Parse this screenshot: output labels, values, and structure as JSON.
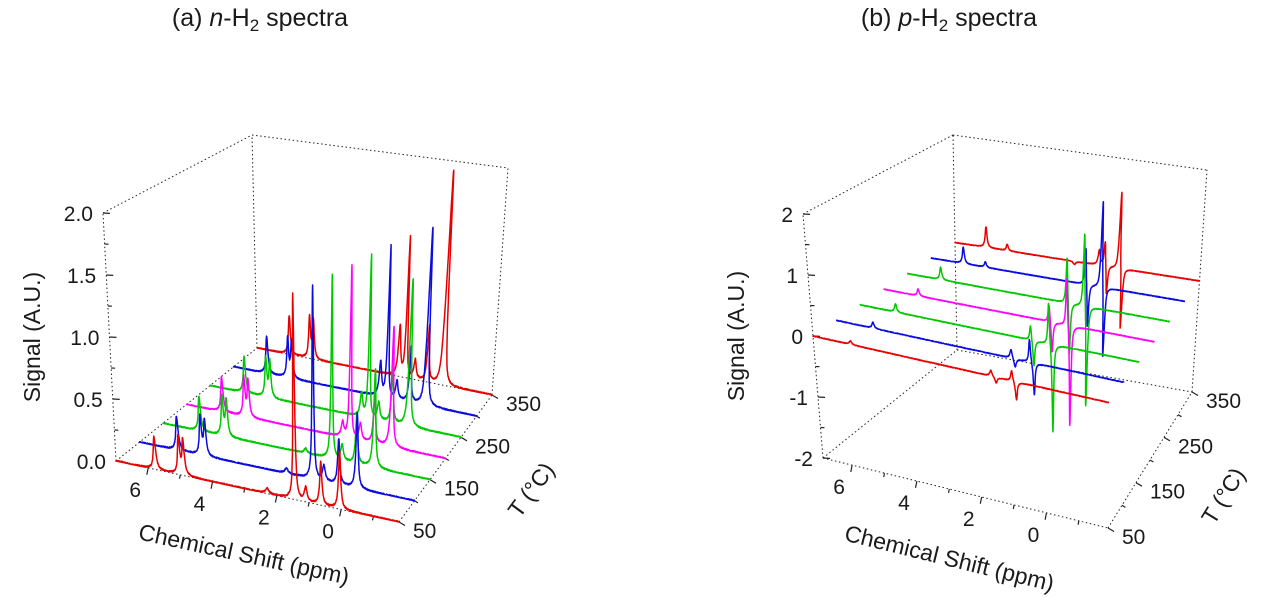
{
  "titles": {
    "a": {
      "prefix": "(a) ",
      "italic": "n",
      "mid": "-H",
      "sub": "2",
      "rest": " spectra"
    },
    "b": {
      "prefix": "(b) ",
      "italic": "p",
      "mid": "-H",
      "sub": "2",
      "rest": " spectra"
    }
  },
  "chart_data": [
    {
      "id": "a",
      "type": "line",
      "subtype": "3d-waterfall-nmr",
      "title": "(a) n-H2 spectra",
      "xlabel": "Chemical Shift (ppm)",
      "ylabel": "T (°C)",
      "zlabel": "Signal (A.U.)",
      "x_range": [
        7.0,
        -1.8
      ],
      "x_ticks_major": [
        6,
        4,
        2,
        0
      ],
      "x_tick_labels": [
        "6",
        "4",
        "2",
        "0"
      ],
      "x_ticks_minor": [
        5,
        3,
        1,
        -1
      ],
      "t_ticks_major": [
        50,
        150,
        250,
        350
      ],
      "t_tick_labels": [
        "50",
        "150",
        "250",
        "350"
      ],
      "t_ticks_minor": [
        100,
        200,
        300
      ],
      "z_range": [
        0,
        2
      ],
      "z_ticks_major": [
        0,
        0.5,
        1,
        1.5,
        2
      ],
      "z_tick_labels": [
        "0.0",
        "0.5",
        "1.0",
        "1.5",
        "2.0"
      ],
      "z_ticks_minor": [
        0.25,
        0.75,
        1.25,
        1.75
      ],
      "grid": false,
      "legend": "none",
      "series": [
        {
          "name": "50 °C",
          "T": 50,
          "color": "#e80000",
          "peaks": [
            [
              5.78,
              0.26,
              0.045
            ],
            [
              5.03,
              0.3,
              0.04
            ],
            [
              4.89,
              0.28,
              0.04
            ],
            [
              2.3,
              0.04,
              0.06
            ],
            [
              1.45,
              1.6,
              0.028
            ],
            [
              1.1,
              0.11,
              0.05
            ],
            [
              0.63,
              0.33,
              0.04
            ],
            [
              0.05,
              0.45,
              0.04
            ]
          ]
        },
        {
          "name": "100 °C",
          "T": 100,
          "color": "#0b0bdf",
          "peaks": [
            [
              5.78,
              0.28,
              0.045
            ],
            [
              5.03,
              0.31,
              0.04
            ],
            [
              4.89,
              0.29,
              0.04
            ],
            [
              2.3,
              0.04,
              0.06
            ],
            [
              1.45,
              1.55,
              0.028
            ],
            [
              1.1,
              0.12,
              0.05
            ],
            [
              0.63,
              0.36,
              0.04
            ],
            [
              0.05,
              0.6,
              0.04
            ]
          ]
        },
        {
          "name": "150 °C",
          "T": 150,
          "color": "#00c800",
          "peaks": [
            [
              5.78,
              0.29,
              0.045
            ],
            [
              5.03,
              0.32,
              0.04
            ],
            [
              4.89,
              0.3,
              0.04
            ],
            [
              2.3,
              0.04,
              0.06
            ],
            [
              1.45,
              1.5,
              0.028
            ],
            [
              1.1,
              0.13,
              0.05
            ],
            [
              0.63,
              0.4,
              0.04
            ],
            [
              0.05,
              0.8,
              0.04
            ]
          ]
        },
        {
          "name": "200 °C",
          "T": 200,
          "color": "#ff00ff",
          "peaks": [
            [
              5.78,
              0.3,
              0.045
            ],
            [
              5.03,
              0.33,
              0.04
            ],
            [
              4.89,
              0.31,
              0.04
            ],
            [
              1.7,
              0.12,
              0.05
            ],
            [
              1.45,
              1.45,
              0.028
            ],
            [
              1.1,
              0.14,
              0.05
            ],
            [
              0.63,
              0.42,
              0.04
            ],
            [
              0.05,
              1.0,
              0.04
            ]
          ]
        },
        {
          "name": "250 °C",
          "T": 250,
          "color": "#00c800",
          "peaks": [
            [
              5.78,
              0.32,
              0.045
            ],
            [
              5.03,
              0.34,
              0.04
            ],
            [
              4.89,
              0.32,
              0.04
            ],
            [
              1.7,
              0.2,
              0.05
            ],
            [
              1.45,
              1.4,
              0.028
            ],
            [
              1.1,
              0.15,
              0.05
            ],
            [
              0.63,
              0.45,
              0.04
            ],
            [
              0.05,
              1.25,
              0.04
            ]
          ]
        },
        {
          "name": "300 °C",
          "T": 300,
          "color": "#0b0bdf",
          "peaks": [
            [
              5.78,
              0.34,
              0.045
            ],
            [
              5.03,
              0.35,
              0.04
            ],
            [
              4.89,
              0.33,
              0.04
            ],
            [
              1.7,
              0.3,
              0.05
            ],
            [
              1.45,
              1.33,
              0.028
            ],
            [
              1.1,
              0.16,
              0.05
            ],
            [
              0.63,
              0.48,
              0.04
            ],
            [
              0.05,
              1.55,
              0.04
            ]
          ]
        },
        {
          "name": "350 °C",
          "T": 350,
          "color": "#e80000",
          "peaks": [
            [
              5.78,
              0.36,
              0.045
            ],
            [
              5.03,
              0.38,
              0.04
            ],
            [
              4.89,
              0.35,
              0.04
            ],
            [
              1.7,
              0.45,
              0.05
            ],
            [
              1.45,
              1.26,
              0.028
            ],
            [
              1.1,
              0.17,
              0.05
            ],
            [
              0.63,
              0.5,
              0.04
            ],
            [
              0.05,
              1.92,
              0.04
            ]
          ]
        }
      ]
    },
    {
      "id": "b",
      "type": "line",
      "subtype": "3d-waterfall-nmr",
      "title": "(b) p-H2 spectra",
      "xlabel": "Chemical Shift (ppm)",
      "ylabel": "T (°C)",
      "zlabel": "Signal (A.U.)",
      "x_range": [
        6.9,
        -1.9
      ],
      "x_ticks_major": [
        6,
        4,
        2,
        0
      ],
      "x_tick_labels": [
        "6",
        "4",
        "2",
        "0"
      ],
      "x_ticks_minor": [
        5,
        3,
        1,
        -1
      ],
      "t_ticks_major": [
        50,
        150,
        250,
        350
      ],
      "t_tick_labels": [
        "50",
        "150",
        "250",
        "350"
      ],
      "t_ticks_minor": [
        100,
        200,
        300
      ],
      "z_range": [
        -2,
        2
      ],
      "z_ticks_major": [
        -2,
        -1,
        0,
        1,
        2
      ],
      "z_tick_labels": [
        "-2",
        "-1",
        "0",
        "1",
        "2"
      ],
      "z_ticks_minor": [
        -1.5,
        -0.5,
        0.5,
        1.5
      ],
      "grid": false,
      "legend": "none",
      "series": [
        {
          "name": "50 °C",
          "T": 50,
          "color": "#e80000",
          "peaks": [
            [
              5.78,
              0.06,
              0.04
            ],
            [
              1.6,
              0.1,
              0.04
            ],
            [
              1.45,
              -0.1,
              0.04
            ],
            [
              0.98,
              0.18,
              0.035
            ],
            [
              0.85,
              -0.3,
              0.035
            ]
          ]
        },
        {
          "name": "100 °C",
          "T": 100,
          "color": "#0b0bdf",
          "peaks": [
            [
              5.78,
              0.1,
              0.04
            ],
            [
              1.55,
              0.15,
              0.04
            ],
            [
              1.43,
              -0.15,
              0.04
            ],
            [
              0.98,
              0.4,
              0.032
            ],
            [
              0.85,
              -0.55,
              0.032
            ]
          ]
        },
        {
          "name": "150 °C",
          "T": 150,
          "color": "#00c800",
          "peaks": [
            [
              5.78,
              0.14,
              0.04
            ],
            [
              1.52,
              0.28,
              0.035
            ],
            [
              1.42,
              -0.45,
              0.035
            ],
            [
              0.95,
              0.75,
              0.03
            ],
            [
              0.82,
              -1.5,
              0.03
            ]
          ]
        },
        {
          "name": "200 °C",
          "T": 200,
          "color": "#ff00ff",
          "peaks": [
            [
              5.78,
              0.12,
              0.04
            ],
            [
              1.52,
              0.33,
              0.035
            ],
            [
              1.42,
              -0.55,
              0.035
            ],
            [
              0.95,
              0.88,
              0.03
            ],
            [
              0.82,
              -1.75,
              0.03
            ]
          ]
        },
        {
          "name": "250 °C",
          "T": 250,
          "color": "#00c800",
          "peaks": [
            [
              5.78,
              0.22,
              0.04
            ],
            [
              1.55,
              0.85,
              0.032
            ],
            [
              1.44,
              -0.95,
              0.032
            ],
            [
              0.98,
              1.35,
              0.03
            ],
            [
              0.85,
              -1.8,
              0.03
            ]
          ]
        },
        {
          "name": "300 °C",
          "T": 300,
          "color": "#0b0bdf",
          "peaks": [
            [
              5.78,
              0.3,
              0.04
            ],
            [
              5.02,
              0.1,
              0.04
            ],
            [
              1.55,
              0.7,
              0.032
            ],
            [
              1.44,
              -0.8,
              0.032
            ],
            [
              1.0,
              1.6,
              0.03
            ],
            [
              0.87,
              -1.3,
              0.03
            ]
          ]
        },
        {
          "name": "350 °C",
          "T": 350,
          "color": "#e80000",
          "peaks": [
            [
              5.78,
              0.38,
              0.04
            ],
            [
              5.02,
              0.12,
              0.04
            ],
            [
              2.6,
              -0.06,
              0.05
            ],
            [
              1.72,
              0.28,
              0.045
            ],
            [
              1.52,
              0.48,
              0.032
            ],
            [
              1.42,
              -0.55,
              0.032
            ],
            [
              1.0,
              1.45,
              0.03
            ],
            [
              0.87,
              -1.15,
              0.03
            ]
          ]
        }
      ]
    }
  ]
}
